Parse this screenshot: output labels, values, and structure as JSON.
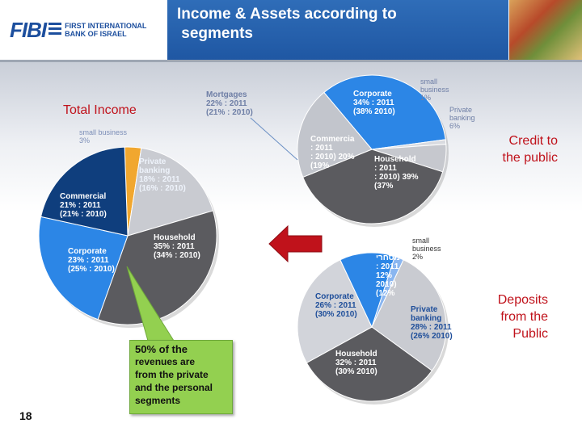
{
  "header": {
    "logo_text": "FIBI",
    "logo_subtitle_line1": "FIRST INTERNATIONAL",
    "logo_subtitle_line2": "BANK OF ISRAEL",
    "title_line1": "Income & Assets according to",
    "title_line2": " segments"
  },
  "page_number": "18",
  "callout": {
    "headline": "50% of the",
    "body_line1": "revenues are",
    "body_line2": "from the private",
    "body_line3": "and the personal",
    "body_line4": "segments"
  },
  "colors": {
    "title_bar": "#2a64b0",
    "household": "#5b5b5f",
    "private_banking": "#c9cbd1",
    "small_business": "#f1a72f",
    "small_business_light": "#8ab6f0",
    "commercial": "#0f3e7d",
    "corporate": "#2c86e6",
    "callout": "#93d050",
    "arrow": "#c0121b",
    "red_text": "#c0121b"
  },
  "chart_data": [
    {
      "type": "pie",
      "title": "Total Income",
      "slices": [
        {
          "name": "small business",
          "value": 3,
          "lines": [
            "small business",
            "3%"
          ]
        },
        {
          "name": "Private banking",
          "value": 18,
          "lines": [
            "Private",
            "banking",
            "18% : 2011",
            "(16% : 2010)"
          ]
        },
        {
          "name": "Household",
          "value": 35,
          "lines": [
            "Household",
            "35% : 2011",
            "(34% : 2010)"
          ]
        },
        {
          "name": "Corporate",
          "value": 23,
          "lines": [
            "Corporate",
            "23% : 2011",
            "(25% : 2010)"
          ]
        },
        {
          "name": "Commercial",
          "value": 21,
          "lines": [
            "Commercial",
            "21% : 2011",
            "(21% : 2010)"
          ]
        }
      ]
    },
    {
      "type": "pie",
      "title": "Credit to the public",
      "title_lines": [
        "Credit to",
        "the public"
      ],
      "slices": [
        {
          "name": "Mortgages",
          "value": 22,
          "lines": [
            "Mortgages",
            "22% : 2011",
            "(21% : 2010)"
          ]
        },
        {
          "name": "Corporate",
          "value": 34,
          "lines": [
            "Corporate",
            "34% : 2011",
            "(38% 2010)"
          ]
        },
        {
          "name": "small business",
          "value": 1,
          "lines": [
            "small",
            "business",
            "1%"
          ]
        },
        {
          "name": "Private banking",
          "value": 6,
          "lines": [
            "Private",
            "banking",
            "6%"
          ]
        },
        {
          "name": "Household",
          "value": 39,
          "lines": [
            "Household",
            ": 2011",
            ": 2010) 39%",
            "(37%"
          ]
        },
        {
          "name": "Commercial",
          "value": 20,
          "lines": [
            "Commercia",
            ": 2011",
            ": 2010) 20%",
            "(19%"
          ]
        }
      ]
    },
    {
      "type": "pie",
      "title": "Deposits from the Public",
      "title_lines": [
        "Deposits",
        "from the",
        "Public"
      ],
      "slices": [
        {
          "name": "small business",
          "value": 2,
          "lines": [
            "small",
            "business",
            "2%"
          ]
        },
        {
          "name": "Private banking",
          "value": 28,
          "lines": [
            "Private",
            "banking",
            "28% : 2011",
            "(26% 2010)"
          ]
        },
        {
          "name": "Household",
          "value": 32,
          "lines": [
            "Household",
            "32% : 2011",
            "(30% 2010)"
          ]
        },
        {
          "name": "Corporate",
          "value": 26,
          "lines": [
            "Corporate",
            "26% : 2011",
            "(30% 2010)"
          ]
        },
        {
          "name": "Commercial",
          "value": 12,
          "lines": [
            "מסחרי",
            ": 2011",
            "12%",
            "2010)",
            "(12%"
          ]
        }
      ]
    }
  ]
}
